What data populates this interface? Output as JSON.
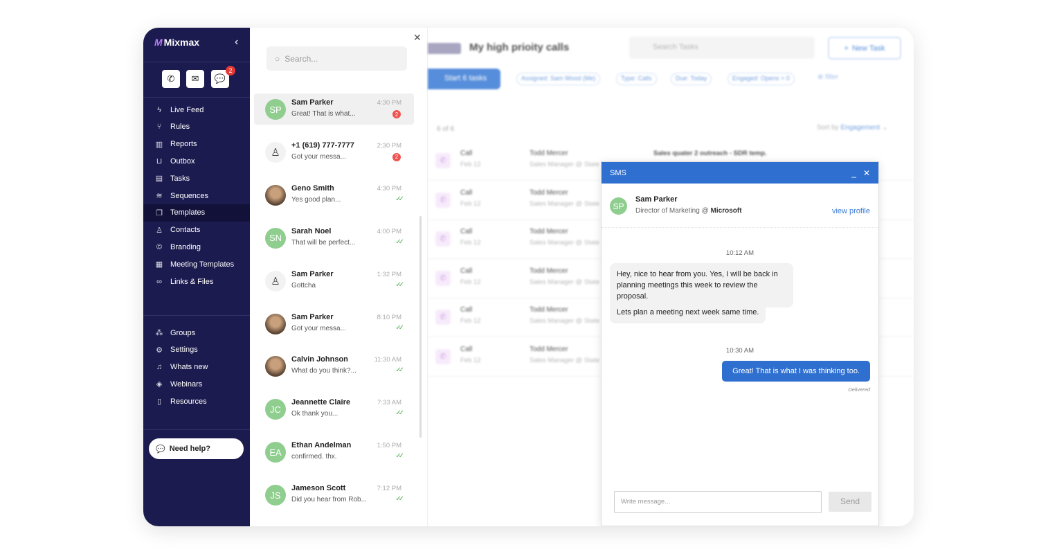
{
  "sidebar": {
    "brand": "Mixmax",
    "quick_actions": [
      {
        "icon": "phone-icon"
      },
      {
        "icon": "mail-icon"
      },
      {
        "icon": "chat-icon",
        "badge": "2"
      }
    ],
    "items": [
      {
        "label": "Live Feed",
        "icon": "bolt-icon"
      },
      {
        "label": "Rules",
        "icon": "branch-icon"
      },
      {
        "label": "Reports",
        "icon": "bar-chart-icon"
      },
      {
        "label": "Outbox",
        "icon": "outbox-icon"
      },
      {
        "label": "Tasks",
        "icon": "clipboard-icon"
      },
      {
        "label": "Sequences",
        "icon": "layers-icon"
      },
      {
        "label": "Templates",
        "icon": "templates-icon",
        "active": true
      },
      {
        "label": "Contacts",
        "icon": "person-icon"
      },
      {
        "label": "Branding",
        "icon": "copyright-icon"
      },
      {
        "label": "Meeting Templates",
        "icon": "calendar-icon"
      },
      {
        "label": "Links & Files",
        "icon": "link-icon"
      }
    ],
    "bottom_items": [
      {
        "label": "Groups",
        "icon": "groups-icon"
      },
      {
        "label": "Settings",
        "icon": "gear-icon"
      },
      {
        "label": "Whats new",
        "icon": "bell-icon"
      },
      {
        "label": "Webinars",
        "icon": "webinar-icon"
      },
      {
        "label": "Resources",
        "icon": "book-icon"
      }
    ],
    "help": "Need help?"
  },
  "conversations": {
    "search_placeholder": "Search...",
    "items": [
      {
        "name": "Sam Parker",
        "preview": "Great! That is what...",
        "time": "4:30 PM",
        "badge": "2",
        "avatar": "SP",
        "selected": true
      },
      {
        "name": "+1 (619) 777-7777",
        "preview": "Got your messa...",
        "time": "2:30 PM",
        "badge": "2",
        "avatar": ""
      },
      {
        "name": "Geno Smith",
        "preview": "Yes good plan...",
        "time": "4:30 PM",
        "read": true,
        "avatar": "photo"
      },
      {
        "name": "Sarah Noel",
        "preview": "That will be perfect...",
        "time": "4:00 PM",
        "read": true,
        "avatar": "SN"
      },
      {
        "name": "Sam Parker",
        "preview": "Gottcha",
        "time": "1:32 PM",
        "read": true,
        "avatar": ""
      },
      {
        "name": "Sam Parker",
        "preview": "Got your messa...",
        "time": "8:10 PM",
        "read": true,
        "avatar": "photo"
      },
      {
        "name": "Calvin Johnson",
        "preview": "What do you think?...",
        "time": "11:30 AM",
        "read": true,
        "avatar": "photo"
      },
      {
        "name": "Jeannette Claire",
        "preview": "Ok thank you...",
        "time": "7:33 AM",
        "read": true,
        "avatar": "JC"
      },
      {
        "name": "Ethan Andelman",
        "preview": "confirmed. thx.",
        "time": "1:50 PM",
        "read": true,
        "avatar": "EA"
      },
      {
        "name": "Jameson Scott",
        "preview": "Did you hear from Rob...",
        "time": "7:12 PM",
        "read": true,
        "avatar": "JS"
      }
    ]
  },
  "tasks": {
    "title": "My high prioity calls",
    "search_placeholder": "Search Tasks",
    "new_task": "New Task",
    "start": "Start 6 tasks",
    "filters": [
      "Assigned: Sam Wood (Me)",
      "Type: Calls",
      "Due: Today",
      "Engaged: Opens > 0"
    ],
    "filter_label": "filter",
    "count": "6 of 6",
    "sort_label": "Sort by",
    "sort_value": "Engagement",
    "rows": [
      {
        "type": "Call",
        "date": "Feb 12",
        "name": "Todd Mercer",
        "role": "Sales Manager @ State",
        "sequence": "Sales quater 2 outreach - SDR temp."
      },
      {
        "type": "Call",
        "date": "Feb 12",
        "name": "Todd Mercer",
        "role": "Sales Manager @ State"
      },
      {
        "type": "Call",
        "date": "Feb 12",
        "name": "Todd Mercer",
        "role": "Sales Manager @ State"
      },
      {
        "type": "Call",
        "date": "Feb 12",
        "name": "Todd Mercer",
        "role": "Sales Manager @ State"
      },
      {
        "type": "Call",
        "date": "Feb 12",
        "name": "Todd Mercer",
        "role": "Sales Manager @ State"
      },
      {
        "type": "Call",
        "date": "Feb 12",
        "name": "Todd Mercer",
        "role": "Sales Manager @ State"
      }
    ]
  },
  "sms": {
    "title": "SMS",
    "contact": {
      "initials": "SP",
      "name": "Sam Parker",
      "role": "Director of Marketing",
      "at": "@",
      "company": "Microsoft",
      "view_profile": "view profile"
    },
    "stamp1": "10:12 AM",
    "incoming": [
      "Hey, nice to hear from you. Yes, I will be back in planning meetings this week to review the proposal.",
      "Lets plan a meeting next week same time."
    ],
    "stamp2": "10:30 AM",
    "outgoing": "Great! That is what I was thinking too.",
    "status": "Delivered",
    "input_placeholder": "Write message...",
    "send": "Send"
  },
  "colors": {
    "sidebar": "#1c1b4f",
    "accent": "#2f6fcf",
    "badge": "#ef5350",
    "avatar": "#8fce8f"
  }
}
